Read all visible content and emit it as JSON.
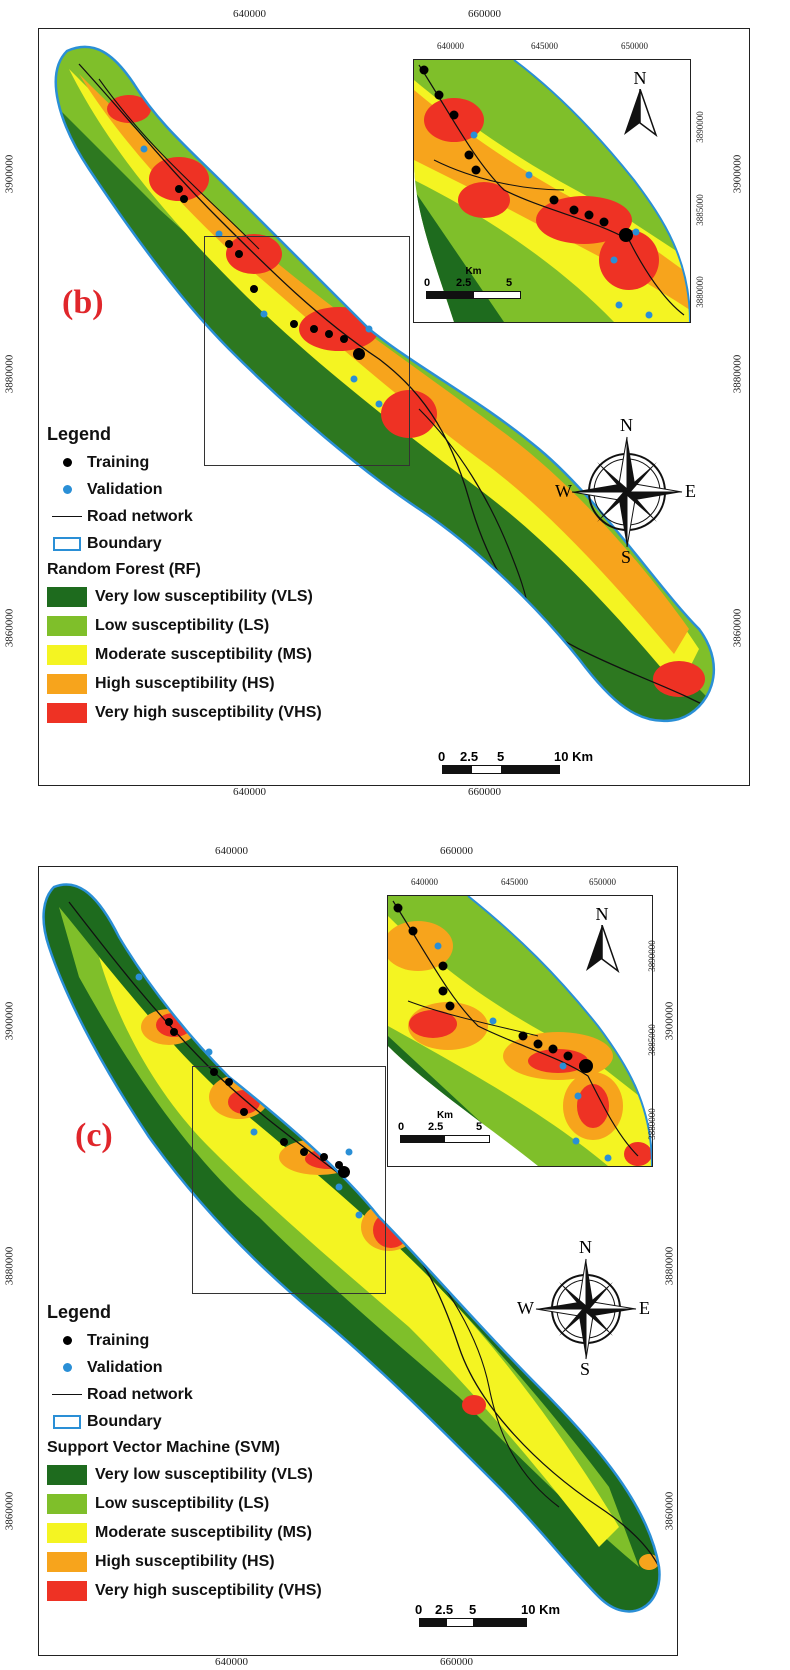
{
  "panels": [
    {
      "id": "b",
      "label": "(b)",
      "x_ticks": [
        "640000",
        "660000"
      ],
      "y_ticks": [
        "3900000",
        "3880000",
        "3860000"
      ],
      "inset_x_ticks": [
        "640000",
        "645000",
        "650000"
      ],
      "inset_y_ticks": [
        "3890000",
        "3885000",
        "3880000"
      ],
      "inset_north": "N",
      "inset_scale": {
        "unit": "Km",
        "labels": [
          "0",
          "2.5",
          "5"
        ]
      },
      "compass": {
        "n": "N",
        "s": "S",
        "e": "E",
        "w": "W"
      },
      "scale": {
        "labels": [
          "0",
          "2.5",
          "5",
          "10 Km"
        ]
      },
      "legend": {
        "title": "Legend",
        "training": "Training",
        "validation": "Validation",
        "road": "Road network",
        "boundary": "Boundary",
        "model": "Random Forest (RF)",
        "classes": [
          {
            "label": "Very low susceptibility (VLS)",
            "color": "#1e6b1e"
          },
          {
            "label": "Low susceptibility (LS)",
            "color": "#7fbf2a"
          },
          {
            "label": "Moderate susceptibility (MS)",
            "color": "#f4f422"
          },
          {
            "label": "High susceptibility (HS)",
            "color": "#f7a41c"
          },
          {
            "label": "Very high susceptibility (VHS)",
            "color": "#ee3224"
          }
        ]
      }
    },
    {
      "id": "c",
      "label": "(c)",
      "x_ticks": [
        "640000",
        "660000"
      ],
      "y_ticks": [
        "3900000",
        "3880000",
        "3860000"
      ],
      "inset_x_ticks": [
        "640000",
        "645000",
        "650000"
      ],
      "inset_y_ticks": [
        "3890000",
        "3885000",
        "3880000"
      ],
      "inset_north": "N",
      "inset_scale": {
        "unit": "Km",
        "labels": [
          "0",
          "2.5",
          "5"
        ]
      },
      "compass": {
        "n": "N",
        "s": "S",
        "e": "E",
        "w": "W"
      },
      "scale": {
        "labels": [
          "0",
          "2.5",
          "5",
          "10 Km"
        ]
      },
      "legend": {
        "title": "Legend",
        "training": "Training",
        "validation": "Validation",
        "road": "Road network",
        "boundary": "Boundary",
        "model": "Support Vector Machine (SVM)",
        "classes": [
          {
            "label": "Very low susceptibility (VLS)",
            "color": "#1e6b1e"
          },
          {
            "label": "Low susceptibility (LS)",
            "color": "#7fbf2a"
          },
          {
            "label": "Moderate susceptibility (MS)",
            "color": "#f4f422"
          },
          {
            "label": "High susceptibility (HS)",
            "color": "#f7a41c"
          },
          {
            "label": "Very high susceptibility (VHS)",
            "color": "#ee3224"
          }
        ]
      }
    }
  ],
  "colors": {
    "boundary": "#2a8fd6",
    "training": "#000000",
    "validation": "#2a8fd6",
    "road": "#111111"
  }
}
